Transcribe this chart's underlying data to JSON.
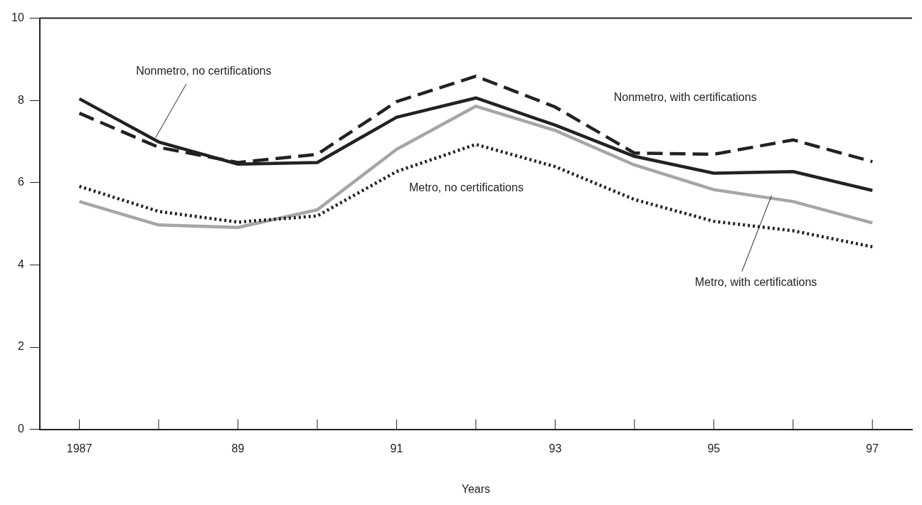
{
  "chart_data": {
    "type": "line",
    "xlabel": "Years",
    "categories": [
      "1987",
      null,
      "89",
      null,
      "91",
      null,
      "93",
      null,
      "95",
      null,
      "97"
    ],
    "series": [
      {
        "name": "Nonmetro, no certifications",
        "color": "#222222",
        "line_style": "solid",
        "values": [
          8.04,
          6.99,
          6.45,
          6.49,
          7.59,
          8.06,
          7.4,
          6.64,
          6.23,
          6.27,
          5.81
        ]
      },
      {
        "name": "Nonmetro, with certifications",
        "color": "#222222",
        "line_style": "dashed",
        "values": [
          7.69,
          6.86,
          6.49,
          6.69,
          7.97,
          8.59,
          7.84,
          6.72,
          6.69,
          7.04,
          6.51
        ]
      },
      {
        "name": "Metro, no certifications",
        "color": "#222222",
        "line_style": "dotted",
        "values": [
          5.91,
          5.3,
          5.04,
          5.19,
          6.27,
          6.93,
          6.39,
          5.59,
          5.06,
          4.83,
          4.44
        ]
      },
      {
        "name": "Metro, with certifications",
        "color": "#a6a6a6",
        "line_style": "solid",
        "values": [
          5.54,
          4.97,
          4.91,
          5.34,
          6.81,
          7.86,
          7.27,
          6.43,
          5.83,
          5.54,
          5.02
        ]
      }
    ],
    "ylim": [
      0,
      10
    ],
    "yticks": [
      0,
      2,
      4,
      6,
      8,
      10
    ],
    "grid": false,
    "legend": false,
    "marker": "none"
  }
}
